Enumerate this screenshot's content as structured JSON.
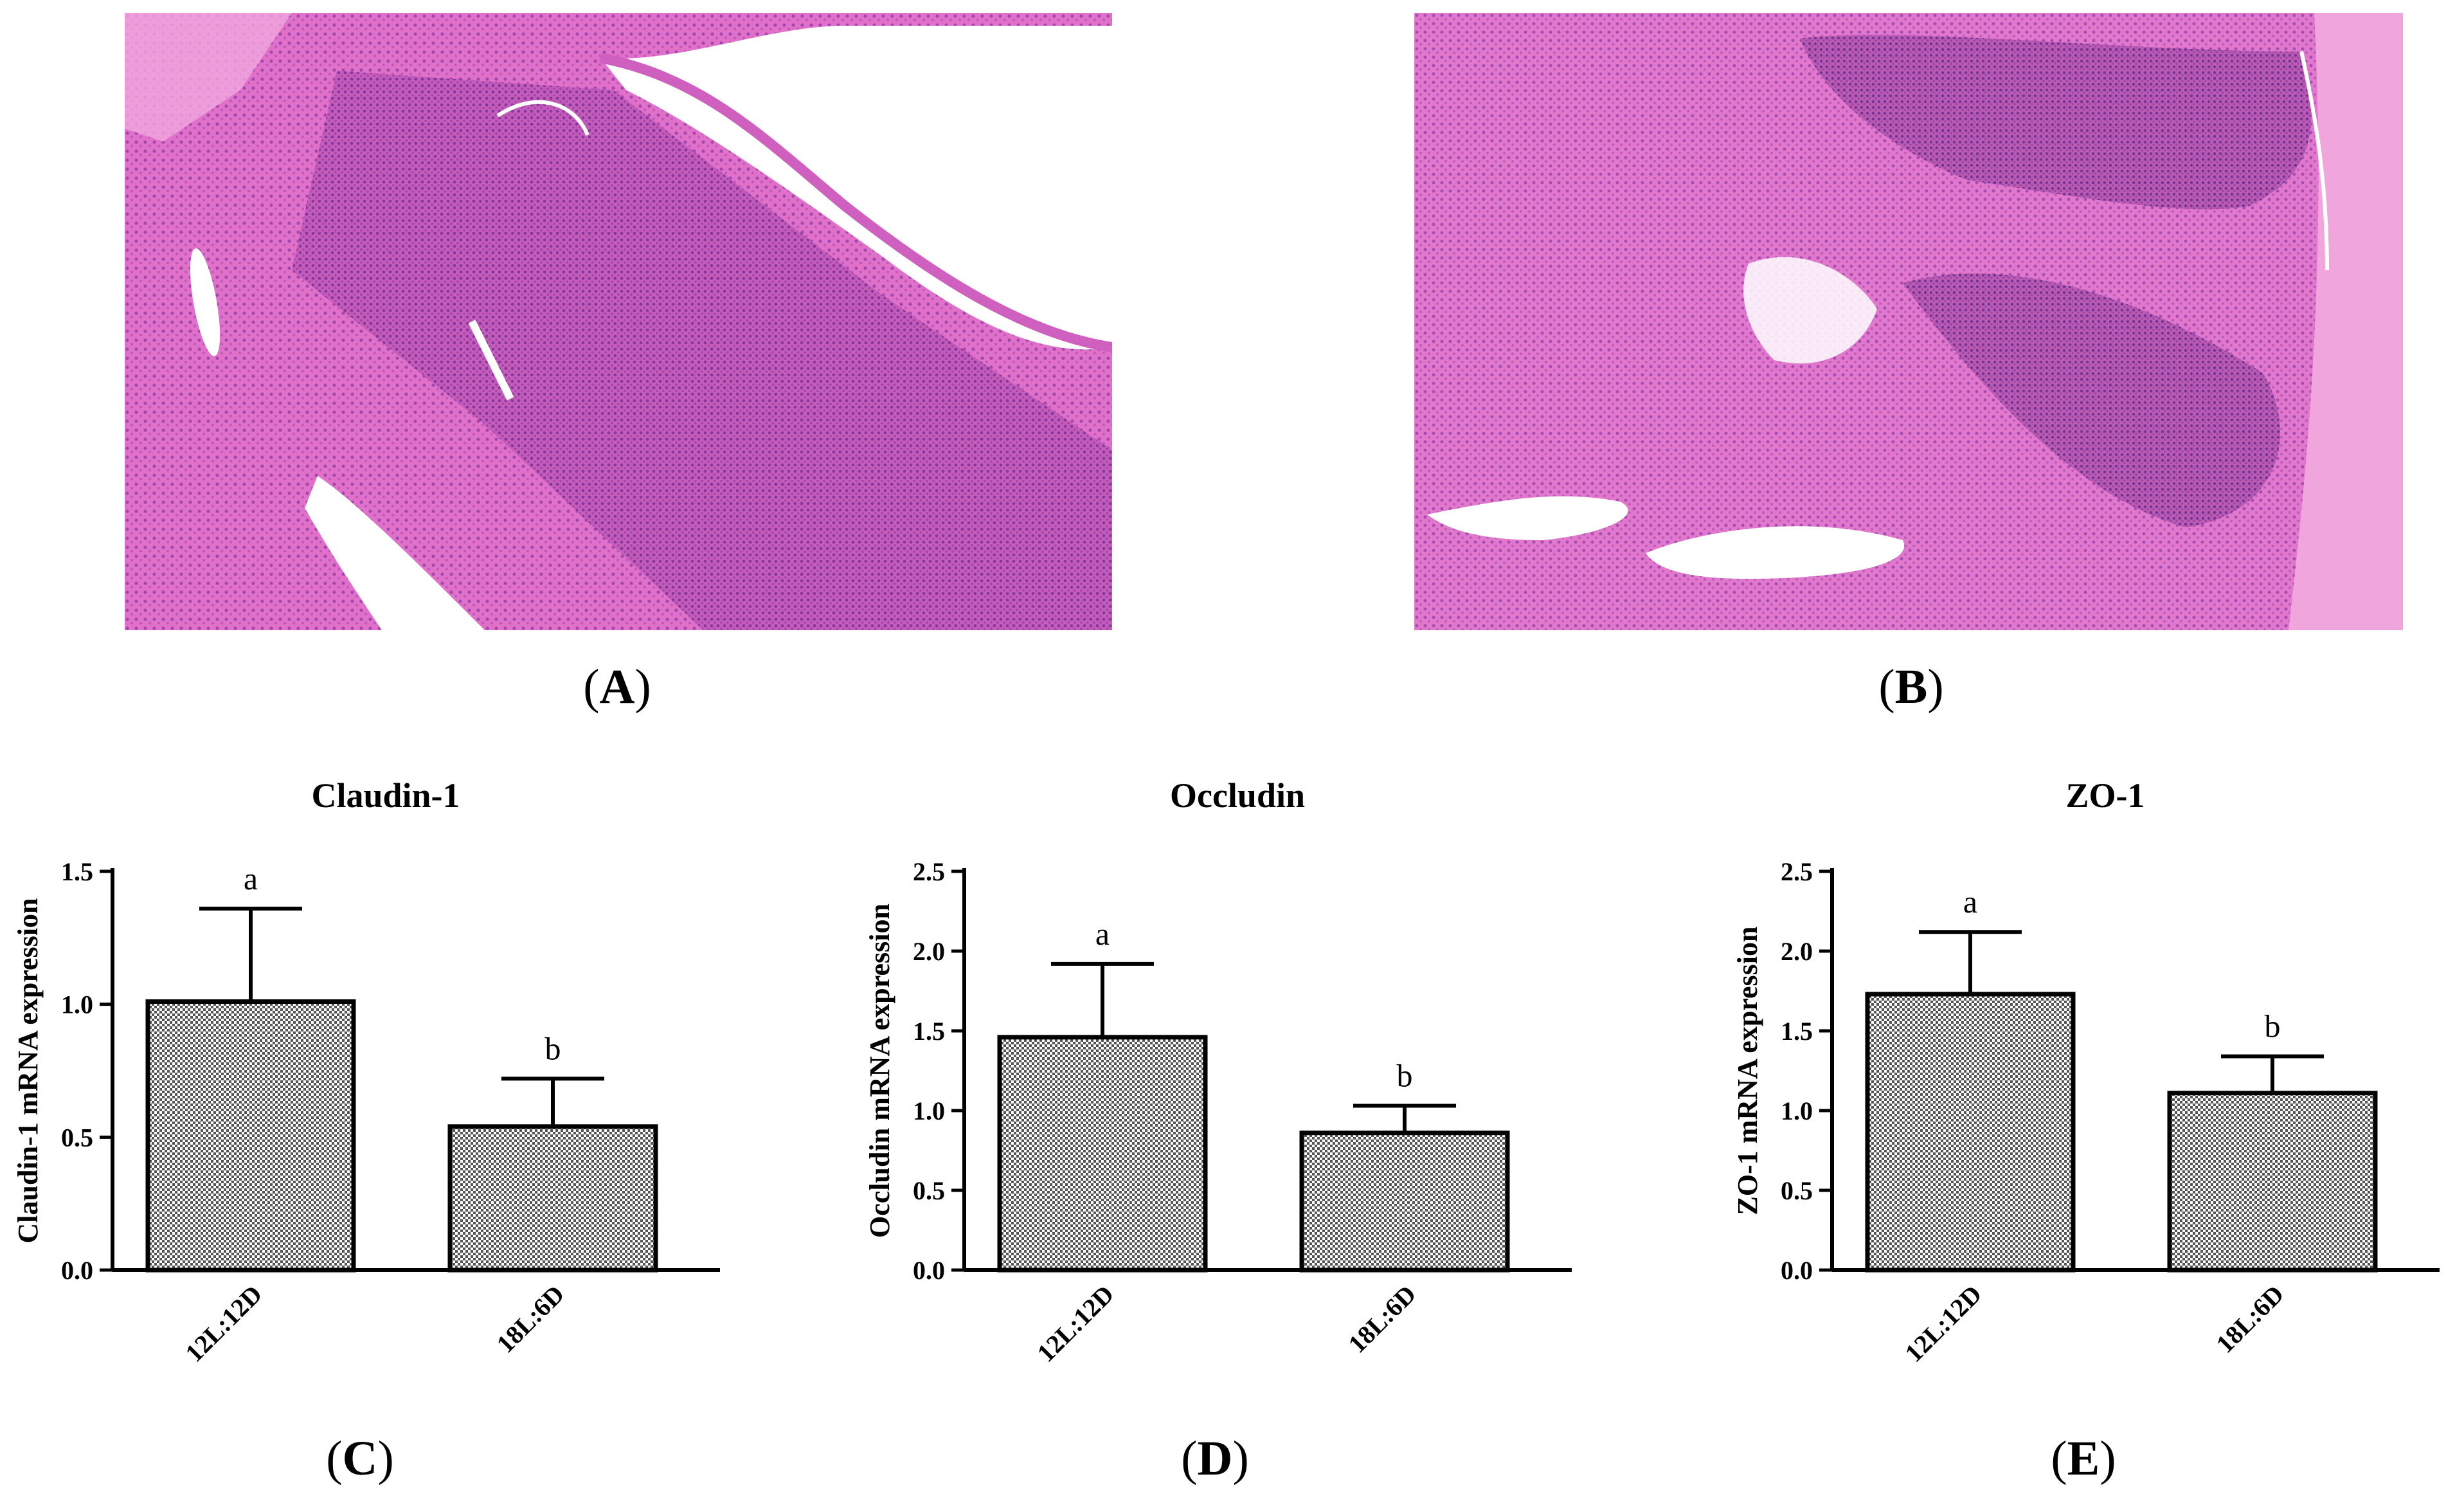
{
  "panels": {
    "A": {
      "label": "A"
    },
    "B": {
      "label": "B"
    },
    "C": {
      "label": "C"
    },
    "D": {
      "label": "D"
    },
    "E": {
      "label": "E"
    }
  },
  "histology": {
    "fill_color": "#e070c8",
    "lumen_color": "#ffffff",
    "nuclei_color": "#7a3a9a"
  },
  "colors": {
    "bar_fill": "#7d7d7d",
    "bar_edge": "#000000",
    "axis": "#000000"
  },
  "chart_data": [
    {
      "type": "bar",
      "title": "Claudin-1",
      "ylabel": "Claudin-1 mRNA expression",
      "xlabel": "",
      "categories": [
        "12L:12D",
        "18L:6D"
      ],
      "values": [
        1.01,
        0.54
      ],
      "errors": [
        0.35,
        0.18
      ],
      "significance": [
        "a",
        "b"
      ],
      "ylim": [
        0,
        1.5
      ],
      "yticks": [
        "0.0",
        "0.5",
        "1.0",
        "1.5"
      ],
      "ytick_values": [
        0,
        0.5,
        1.0,
        1.5
      ],
      "grid": false,
      "panel": "C"
    },
    {
      "type": "bar",
      "title": "Occludin",
      "ylabel": "Occludin mRNA expression",
      "xlabel": "",
      "categories": [
        "12L:12D",
        "18L:6D"
      ],
      "values": [
        1.46,
        0.86
      ],
      "errors": [
        0.46,
        0.17
      ],
      "significance": [
        "a",
        "b"
      ],
      "ylim": [
        0,
        2.5
      ],
      "yticks": [
        "0.0",
        "0.5",
        "1.0",
        "1.5",
        "2.0",
        "2.5"
      ],
      "ytick_values": [
        0,
        0.5,
        1.0,
        1.5,
        2.0,
        2.5
      ],
      "grid": false,
      "panel": "D"
    },
    {
      "type": "bar",
      "title": "ZO-1",
      "ylabel": "ZO-1 mRNA expression",
      "xlabel": "",
      "categories": [
        "12L:12D",
        "18L:6D"
      ],
      "values": [
        1.73,
        1.11
      ],
      "errors": [
        0.39,
        0.23
      ],
      "significance": [
        "a",
        "b"
      ],
      "ylim": [
        0,
        2.5
      ],
      "yticks": [
        "0.0",
        "0.5",
        "1.0",
        "1.5",
        "2.0",
        "2.5"
      ],
      "ytick_values": [
        0,
        0.5,
        1.0,
        1.5,
        2.0,
        2.5
      ],
      "grid": false,
      "panel": "E"
    }
  ]
}
